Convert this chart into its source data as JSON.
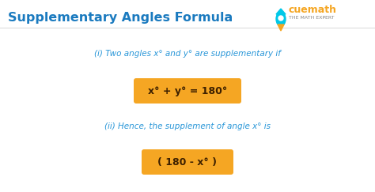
{
  "title": "Supplementary Angles Formula",
  "title_color": "#1a7abf",
  "title_fontsize": 11.5,
  "background_color": "#ffffff",
  "line1": "(i) Two angles x° and y° are supplementary if",
  "line1_color": "#2896d8",
  "line1_fontsize": 7.5,
  "formula1": "x° + y° = 180°",
  "formula1_color": "#3d2000",
  "formula1_fontsize": 9,
  "formula1_bg": "#f5a623",
  "line2": "(ii) Hence, the supplement of angle x° is",
  "line2_color": "#2896d8",
  "line2_fontsize": 7.5,
  "formula2": "( 180 - x° )",
  "formula2_color": "#3d2000",
  "formula2_fontsize": 9,
  "formula2_bg": "#f5a623",
  "cuemath_text": "cuemath",
  "cuemath_color": "#f5a623",
  "cuemath_sub_color": "#888888",
  "cuemath_subtext": "THE MATH EXPERT",
  "rocket_color": "#00c0e8"
}
